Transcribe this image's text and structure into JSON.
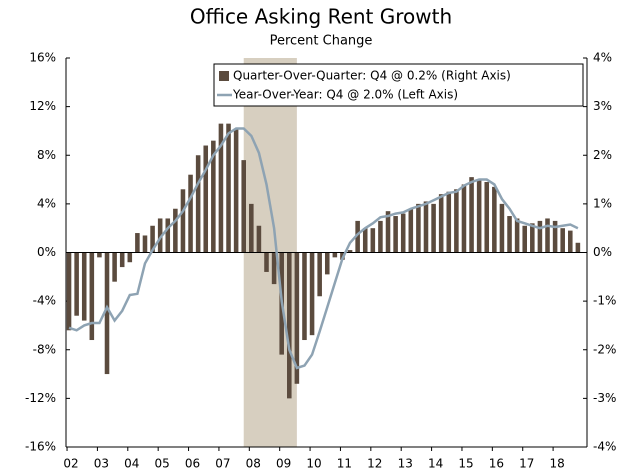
{
  "chart_data": {
    "type": "bar-line",
    "title": "Office Asking Rent Growth",
    "subtitle": "Percent Change",
    "x": [
      2002,
      2002.25,
      2002.5,
      2002.75,
      2003,
      2003.25,
      2003.5,
      2003.75,
      2004,
      2004.25,
      2004.5,
      2004.75,
      2005,
      2005.25,
      2005.5,
      2005.75,
      2006,
      2006.25,
      2006.5,
      2006.75,
      2007,
      2007.25,
      2007.5,
      2007.75,
      2008,
      2008.25,
      2008.5,
      2008.75,
      2009,
      2009.25,
      2009.5,
      2009.75,
      2010,
      2010.25,
      2010.5,
      2010.75,
      2011,
      2011.25,
      2011.5,
      2011.75,
      2012,
      2012.25,
      2012.5,
      2012.75,
      2013,
      2013.25,
      2013.5,
      2013.75,
      2014,
      2014.25,
      2014.5,
      2014.75,
      2015,
      2015.25,
      2015.5,
      2015.75,
      2016,
      2016.25,
      2016.5,
      2016.75,
      2017,
      2017.25,
      2017.5,
      2017.75,
      2018,
      2018.25,
      2018.5,
      2018.75
    ],
    "series": [
      {
        "name": "Quarter-Over-Quarter: Q4 @ 0.2% (Right Axis)",
        "kind": "bar",
        "axis": "y2",
        "color": "#5b4b3e",
        "values": [
          -1.6,
          -1.3,
          -1.4,
          -1.8,
          -0.1,
          -2.5,
          -0.6,
          -0.3,
          -0.2,
          0.4,
          0.35,
          0.55,
          0.7,
          0.7,
          0.9,
          1.3,
          1.6,
          2.0,
          2.2,
          2.3,
          2.65,
          2.65,
          2.55,
          1.9,
          1.0,
          0.55,
          -0.4,
          -0.65,
          -2.1,
          -3.0,
          -2.7,
          -1.8,
          -1.7,
          -0.9,
          -0.45,
          -0.1,
          -0.15,
          0.05,
          0.65,
          0.5,
          0.5,
          0.65,
          0.85,
          0.75,
          0.8,
          0.9,
          1.0,
          1.05,
          1.0,
          1.2,
          1.25,
          1.3,
          1.4,
          1.55,
          1.5,
          1.45,
          1.35,
          1.0,
          0.75,
          0.7,
          0.55,
          0.6,
          0.65,
          0.7,
          0.65,
          0.5,
          0.45,
          0.2
        ]
      },
      {
        "name": "Year-Over-Year: Q4 @ 2.0% (Left Axis)",
        "kind": "line",
        "axis": "y",
        "color": "#8ea3b3",
        "values": [
          -6.2,
          -6.4,
          -6.0,
          -5.8,
          -5.8,
          -4.5,
          -5.6,
          -4.8,
          -3.5,
          -3.4,
          -0.9,
          0.2,
          1.2,
          2.0,
          2.6,
          3.4,
          4.5,
          5.7,
          6.8,
          8.0,
          8.8,
          9.8,
          10.2,
          10.2,
          9.6,
          8.2,
          5.6,
          2.0,
          -4.0,
          -8.0,
          -9.5,
          -9.3,
          -8.4,
          -6.5,
          -4.5,
          -2.5,
          -0.5,
          0.8,
          1.5,
          2.0,
          2.4,
          2.9,
          3.0,
          3.2,
          3.3,
          3.6,
          3.8,
          4.0,
          4.3,
          4.6,
          4.9,
          5.0,
          5.5,
          5.8,
          6.0,
          6.0,
          5.6,
          4.4,
          3.6,
          2.6,
          2.4,
          2.2,
          2.0,
          2.2,
          2.1,
          2.2,
          2.3,
          2.0
        ]
      }
    ],
    "recession": [
      2007.75,
      2009.5
    ],
    "recession_color": "#d7cfc0",
    "xlim": [
      2001.9,
      2019.05
    ],
    "xticks": [
      {
        "value": 2002,
        "label": "02"
      },
      {
        "value": 2003,
        "label": "03"
      },
      {
        "value": 2004,
        "label": "04"
      },
      {
        "value": 2005,
        "label": "05"
      },
      {
        "value": 2006,
        "label": "06"
      },
      {
        "value": 2007,
        "label": "07"
      },
      {
        "value": 2008,
        "label": "08"
      },
      {
        "value": 2009,
        "label": "09"
      },
      {
        "value": 2010,
        "label": "10"
      },
      {
        "value": 2011,
        "label": "11"
      },
      {
        "value": 2012,
        "label": "12"
      },
      {
        "value": 2013,
        "label": "13"
      },
      {
        "value": 2014,
        "label": "14"
      },
      {
        "value": 2015,
        "label": "15"
      },
      {
        "value": 2016,
        "label": "16"
      },
      {
        "value": 2017,
        "label": "17"
      },
      {
        "value": 2018,
        "label": "18"
      }
    ],
    "ylim": [
      -16,
      16
    ],
    "yticks": [
      {
        "value": -16,
        "label": "-16%"
      },
      {
        "value": -12,
        "label": "-12%"
      },
      {
        "value": -8,
        "label": "-8%"
      },
      {
        "value": -4,
        "label": "-4%"
      },
      {
        "value": 0,
        "label": "0%"
      },
      {
        "value": 4,
        "label": "4%"
      },
      {
        "value": 8,
        "label": "8%"
      },
      {
        "value": 12,
        "label": "12%"
      },
      {
        "value": 16,
        "label": "16%"
      }
    ],
    "y2lim": [
      -4,
      4
    ],
    "y2ticks": [
      {
        "value": -4,
        "label": "-4%"
      },
      {
        "value": -3,
        "label": "-3%"
      },
      {
        "value": -2,
        "label": "-2%"
      },
      {
        "value": -1,
        "label": "-1%"
      },
      {
        "value": 0,
        "label": "0%"
      },
      {
        "value": 1,
        "label": "1%"
      },
      {
        "value": 2,
        "label": "2%"
      },
      {
        "value": 3,
        "label": "3%"
      },
      {
        "value": 4,
        "label": "4%"
      }
    ],
    "legend": "top-right"
  }
}
